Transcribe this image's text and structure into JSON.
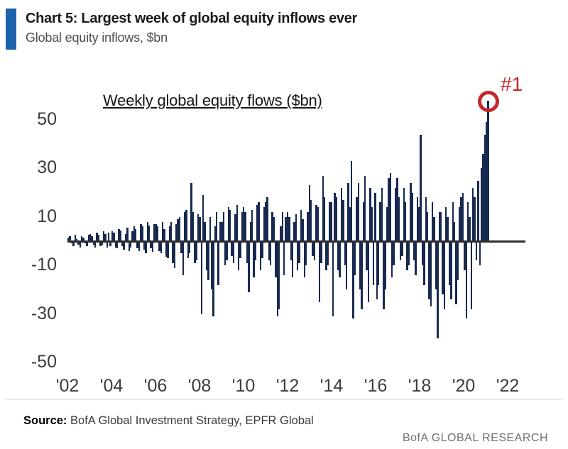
{
  "header": {
    "accent_color": "#1e62ae",
    "title": "Chart 5: Largest week of global equity inflows ever",
    "subtitle": "Global equity inflows, $bn"
  },
  "chart_data": {
    "type": "bar",
    "title": "Weekly global equity flows ($bn)",
    "unit": "$bn",
    "frequency": "weekly",
    "x_ticks": [
      "'02",
      "'04",
      "'06",
      "'08",
      "'10",
      "'12",
      "'14",
      "'16",
      "'18",
      "'20",
      "'22"
    ],
    "x_range_years": [
      2002,
      2021.2
    ],
    "y_ticks": [
      50,
      30,
      10,
      -10,
      -30,
      -50
    ],
    "ylim": [
      -50,
      62
    ],
    "grid": "off",
    "bar_color": "#18294f",
    "zero_line_color": "#2e2e2e",
    "bars_start_year": 2002,
    "bars_per_year": 13,
    "bars": [
      1.5,
      2,
      -1,
      -2,
      2.5,
      1,
      -1.5,
      -2.5,
      2,
      1.5,
      -1,
      -2,
      2.5,
      3,
      2,
      -1.5,
      -2.5,
      3.5,
      2.5,
      -2,
      -1.5,
      4,
      3,
      -2.5,
      3.5,
      -2,
      4,
      3.5,
      -2.5,
      -3,
      5,
      4.5,
      -2,
      -3.5,
      3,
      5.5,
      -4,
      -2.5,
      4,
      6,
      5,
      -3,
      -4,
      7,
      6,
      -3.5,
      -5,
      8,
      6.5,
      -3,
      -4.5,
      7,
      7,
      6,
      -4,
      -5,
      8,
      5,
      -6.5,
      -7,
      6,
      8,
      -9,
      -11,
      7,
      9,
      10,
      -5,
      -14,
      12,
      13,
      -7,
      -5,
      24,
      12,
      -9,
      -8,
      11,
      10,
      -30,
      19,
      8,
      -12,
      -16,
      10,
      -20,
      -31,
      6,
      12,
      -18,
      8,
      8,
      12,
      -10,
      -8,
      14,
      13,
      -6,
      -9,
      11,
      15,
      -12,
      -7,
      12,
      14,
      12,
      -9,
      -21,
      8,
      13,
      -15,
      -8,
      15,
      16,
      -12,
      -7,
      14,
      16,
      18,
      -8,
      -10,
      12,
      10,
      -15,
      -31,
      -28,
      6,
      12,
      -14,
      10,
      12,
      10,
      -8,
      -15,
      8,
      11,
      -12,
      -9,
      13,
      9,
      -15,
      -10,
      12,
      23,
      17,
      -6,
      -8,
      15,
      14,
      -25,
      -9,
      27,
      18,
      -12,
      -10,
      16,
      16,
      -31,
      20,
      18,
      -12,
      -15,
      22,
      17,
      -10,
      -20,
      24,
      14,
      33,
      -32,
      -14,
      18,
      24,
      -20,
      -28,
      16,
      27,
      -12,
      -25,
      22,
      14,
      -18,
      20,
      -24,
      -18,
      16,
      22,
      -28,
      -20,
      14,
      26,
      28,
      -15,
      -10,
      22,
      26,
      18,
      -8,
      -6,
      22,
      16,
      -12,
      -10,
      24,
      20,
      -8,
      -14,
      18,
      14,
      44,
      -10,
      -18,
      18,
      12,
      -24,
      -27,
      16,
      10,
      -20,
      -40,
      12,
      12,
      -22,
      -28,
      14,
      10,
      -18,
      -24,
      16,
      8,
      -26,
      -16,
      14,
      18,
      20,
      -12,
      -32,
      16,
      10,
      -28,
      22,
      18,
      -8,
      25,
      -10,
      30,
      36,
      44,
      49,
      58
    ],
    "annotation": {
      "label": "#1",
      "color": "#c4262a",
      "peak_value": 58,
      "note": "red circle marks record largest weekly inflow bar"
    },
    "legend_position": "none"
  },
  "footer": {
    "source_label": "Source:",
    "source_text": "BofA Global Investment Strategy, EPFR Global",
    "brand": "BofA GLOBAL RESEARCH"
  }
}
